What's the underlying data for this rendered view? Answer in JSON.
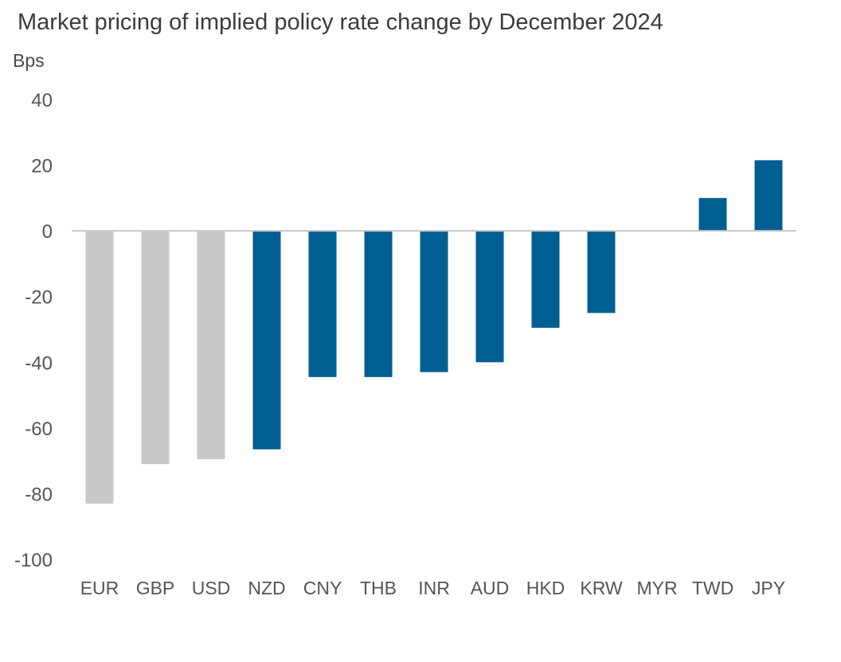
{
  "chart_data": {
    "type": "bar",
    "title": "Market pricing of implied policy rate change by December 2024",
    "ylabel": "Bps",
    "xlabel": "",
    "ylim": [
      -100,
      40
    ],
    "yticks": [
      40,
      20,
      0,
      -20,
      -40,
      -60,
      -80,
      -100
    ],
    "grid": false,
    "categories": [
      "EUR",
      "GBP",
      "USD",
      "NZD",
      "CNY",
      "THB",
      "INR",
      "AUD",
      "HKD",
      "KRW",
      "MYR",
      "TWD",
      "JPY"
    ],
    "values": [
      -83,
      -71,
      -69.5,
      -66.5,
      -44.5,
      -44.5,
      -43,
      -40,
      -29.5,
      -25,
      0,
      10,
      21.5
    ],
    "groups": [
      "highlight",
      "highlight",
      "highlight",
      "main",
      "main",
      "main",
      "main",
      "main",
      "main",
      "main",
      "main",
      "main",
      "main"
    ],
    "colors": {
      "highlight": "#c8c8ca",
      "main": "#005f91",
      "axis": "#c8c8ca"
    }
  }
}
